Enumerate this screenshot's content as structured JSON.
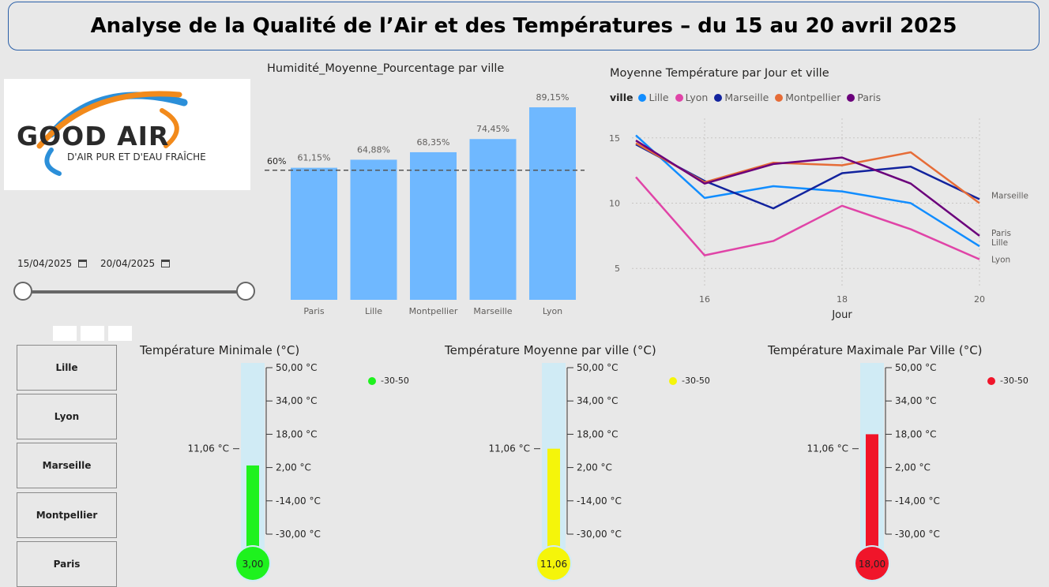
{
  "header": {
    "title": "Analyse de la Qualité de l’Air et des Températures – du 15 au 20 avril 2025"
  },
  "logo": {
    "main_text": "GOOD AIR",
    "tagline": "D'AIR PUR ET D'EAU FRAÎCHE",
    "colors": {
      "blue": "#2b8fd9",
      "orange": "#f28a1b",
      "text": "#2a2a2a"
    }
  },
  "date_filter": {
    "start": "15/04/2025",
    "end": "20/04/2025",
    "icon": "calendar-icon"
  },
  "city_slicer": {
    "items": [
      "Lille",
      "Lyon",
      "Marseille",
      "Montpellier",
      "Paris"
    ]
  },
  "humidity_chart": {
    "title": "Humidité_Moyenne_Pourcentage par ville",
    "chart_data": {
      "type": "bar",
      "categories": [
        "Paris",
        "Lille",
        "Montpellier",
        "Marseille",
        "Lyon"
      ],
      "values": [
        61.15,
        64.88,
        68.35,
        74.45,
        89.15
      ],
      "labels": [
        "61,15%",
        "64,88%",
        "68,35%",
        "74,45%",
        "89,15%"
      ],
      "reference_line": {
        "value": 60,
        "label": "60%"
      },
      "ylim": [
        0,
        95
      ],
      "color": "#6fb8ff"
    }
  },
  "temperature_line_chart": {
    "title": "Moyenne Température par Jour et ville",
    "legend_title": "ville",
    "chart_data": {
      "type": "line",
      "x": [
        15,
        16,
        17,
        18,
        19,
        20
      ],
      "xticks": [
        "16",
        "18",
        "20"
      ],
      "xtick_values": [
        16,
        18,
        20
      ],
      "yticks": [
        "5",
        "10",
        "15"
      ],
      "ytick_values": [
        5,
        10,
        15
      ],
      "xlabel": "Jour",
      "xlim": [
        15,
        20
      ],
      "ylim": [
        3.5,
        16.5
      ],
      "series": [
        {
          "name": "Lille",
          "color": "#118dff",
          "values": [
            15.2,
            10.4,
            11.3,
            10.9,
            10.0,
            6.7
          ],
          "end_label": "Lille"
        },
        {
          "name": "Lyon",
          "color": "#e044a7",
          "values": [
            12.0,
            6.0,
            7.1,
            9.8,
            8.0,
            5.7
          ],
          "end_label": "Lyon"
        },
        {
          "name": "Marseille",
          "color": "#12239e",
          "values": [
            14.5,
            11.7,
            9.6,
            12.3,
            12.8,
            10.3
          ],
          "end_label": "Marseille"
        },
        {
          "name": "Montpellier",
          "color": "#e66c37",
          "values": [
            14.6,
            11.6,
            13.1,
            12.9,
            13.9,
            10.0
          ],
          "end_label": ""
        },
        {
          "name": "Paris",
          "color": "#6b007b",
          "values": [
            14.8,
            11.5,
            13.0,
            13.5,
            11.5,
            7.5
          ],
          "end_label": "Paris"
        }
      ]
    }
  },
  "thermometers": [
    {
      "title": "Température Minimale (°C)",
      "value": 3.0,
      "value_label": "3,00",
      "marker_label": "11,06 °C",
      "color": "#1ef21e",
      "legend": "-30-50",
      "ticks": [
        "50,00 °C",
        "34,00 °C",
        "18,00 °C",
        "2,00 °C",
        "-14,00 °C",
        "-30,00 °C"
      ]
    },
    {
      "title": "Température Moyenne par ville (°C)",
      "value": 11.06,
      "value_label": "11,06",
      "marker_label": "11,06 °C",
      "color": "#f5f50a",
      "legend": "-30-50",
      "ticks": [
        "50,00 °C",
        "34,00 °C",
        "18,00 °C",
        "2,00 °C",
        "-14,00 °C",
        "-30,00 °C"
      ]
    },
    {
      "title": "Température Maximale Par Ville (°C)",
      "value": 18.0,
      "value_label": "18,00",
      "marker_label": "11,06 °C",
      "color": "#f0152a",
      "legend": "-30-50",
      "ticks": [
        "50,00 °C",
        "34,00 °C",
        "18,00 °C",
        "2,00 °C",
        "-14,00 °C",
        "-30,00 °C"
      ]
    }
  ],
  "thermometer_scale": {
    "min": -30,
    "max": 50
  }
}
